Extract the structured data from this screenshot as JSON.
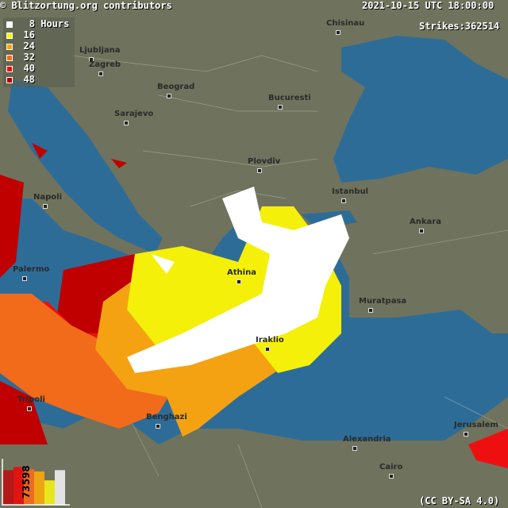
{
  "header": {
    "attribution": "© Blitzortung.org contributors",
    "datetime": "2021-10-15 UTC 18:00:00",
    "strikes_label": "Strikes:",
    "strikes_value": "362514"
  },
  "legend": {
    "unit": "Hours",
    "items": [
      {
        "label": "8",
        "color": "#ffffff"
      },
      {
        "label": "16",
        "color": "#ffff00"
      },
      {
        "label": "24",
        "color": "#ffa500"
      },
      {
        "label": "32",
        "color": "#ff6a00"
      },
      {
        "label": "40",
        "color": "#ff0000"
      },
      {
        "label": "48",
        "color": "#b00000"
      }
    ]
  },
  "histogram": {
    "label": "73598",
    "bars": [
      {
        "color": "#b51818",
        "level": 0.78
      },
      {
        "color": "#e01510",
        "level": 0.85
      },
      {
        "color": "#ee6a1e",
        "level": 0.8
      },
      {
        "color": "#eda512",
        "level": 0.75
      },
      {
        "color": "#e6e61e",
        "level": 0.55
      },
      {
        "color": "#e3e3e3",
        "level": 0.78
      }
    ]
  },
  "cities": [
    {
      "name": "Chisinau"
    },
    {
      "name": "Ljubljana"
    },
    {
      "name": "Zagreb"
    },
    {
      "name": "Beograd"
    },
    {
      "name": "Bucuresti"
    },
    {
      "name": "Sarajevo"
    },
    {
      "name": "Plovdiv"
    },
    {
      "name": "Istanbul"
    },
    {
      "name": "Napoli"
    },
    {
      "name": "Ankara"
    },
    {
      "name": "Palermo"
    },
    {
      "name": "Athina"
    },
    {
      "name": "Muratpasa"
    },
    {
      "name": "Iraklio"
    },
    {
      "name": "Tripoli"
    },
    {
      "name": "Benghazi"
    },
    {
      "name": "Alexandria"
    },
    {
      "name": "Jerusalem"
    },
    {
      "name": "Cairo"
    }
  ],
  "license": "(CC BY-SA 4.0)",
  "colors": {
    "land": "#6f735d",
    "sea": "#2e6c98"
  }
}
